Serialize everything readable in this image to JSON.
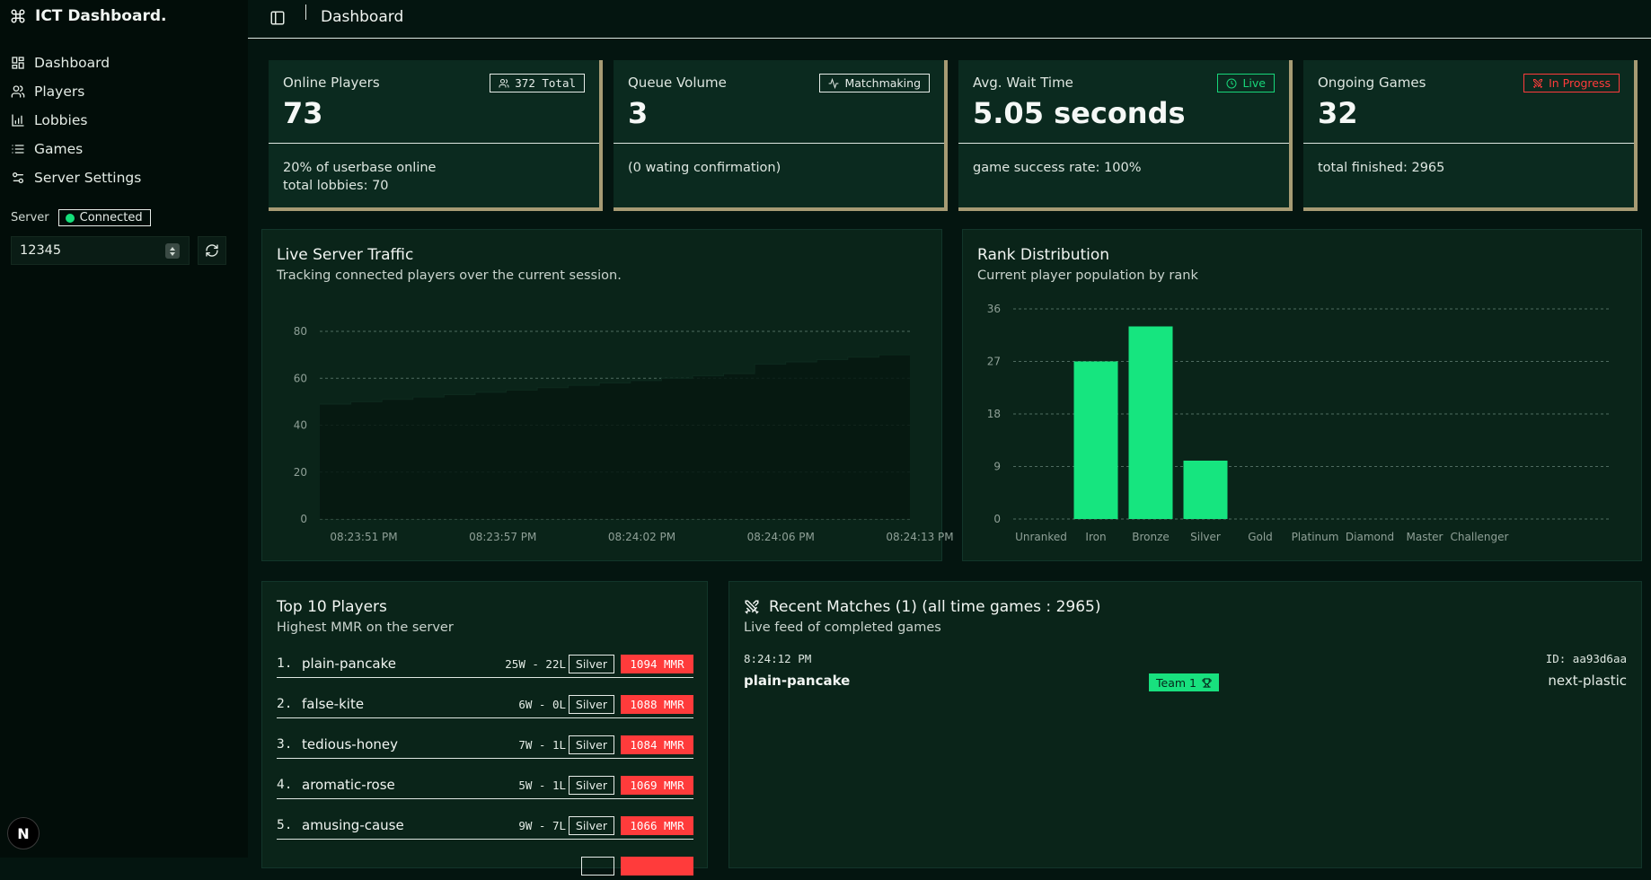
{
  "app": {
    "title": "ICT Dashboard."
  },
  "sidebar": {
    "items": [
      {
        "label": "Dashboard",
        "icon": "layout-grid-icon"
      },
      {
        "label": "Players",
        "icon": "users-icon"
      },
      {
        "label": "Lobbies",
        "icon": "bar-chart-icon"
      },
      {
        "label": "Games",
        "icon": "list-icon"
      },
      {
        "label": "Server Settings",
        "icon": "settings-sliders-icon"
      }
    ],
    "server_label": "Server",
    "server_status": "Connected",
    "port_value": "12345",
    "bottom_badge": "N"
  },
  "header": {
    "title": "Dashboard"
  },
  "stats": [
    {
      "label": "Online Players",
      "value": "73",
      "badge": "372 Total",
      "badge_icon": "users-icon",
      "line1": "20% of userbase online",
      "line2": "total lobbies: 70"
    },
    {
      "label": "Queue Volume",
      "value": "3",
      "badge": "Matchmaking",
      "badge_icon": "activity-icon",
      "line1": "(0 wating confirmation)",
      "line2": ""
    },
    {
      "label": "Avg. Wait Time",
      "value": "5.05 seconds",
      "badge": "Live",
      "badge_icon": "clock-icon",
      "line1": "game success rate: 100%",
      "line2": ""
    },
    {
      "label": "Ongoing Games",
      "value": "32",
      "badge": "In Progress",
      "badge_icon": "swords-icon",
      "line1": "total finished: 2965",
      "line2": ""
    }
  ],
  "colors": {
    "accent": "#15e07a",
    "danger": "#ff3b3b",
    "card_border": "#a79b74"
  },
  "traffic": {
    "title": "Live Server Traffic",
    "subtitle": "Tracking connected players over the current session."
  },
  "ranks": {
    "title": "Rank Distribution",
    "subtitle": "Current player population by rank"
  },
  "chart_data": [
    {
      "type": "area",
      "title": "Live Server Traffic",
      "x_ticks": [
        "08:23:51 PM",
        "08:23:57 PM",
        "08:24:02 PM",
        "08:24:06 PM",
        "08:24:13 PM"
      ],
      "y_ticks": [
        0,
        20,
        40,
        60,
        80
      ],
      "ylim": [
        0,
        80
      ],
      "values": [
        49,
        50,
        51,
        52,
        53,
        54,
        55,
        56,
        57,
        58,
        59,
        60,
        61,
        62,
        66,
        67,
        68,
        69,
        70
      ],
      "grid": true
    },
    {
      "type": "bar",
      "title": "Rank Distribution",
      "categories": [
        "Unranked",
        "Iron",
        "Bronze",
        "Silver",
        "Gold",
        "Platinum",
        "Diamond",
        "Master",
        "Challenger"
      ],
      "values": [
        0,
        27,
        33,
        10,
        0,
        0,
        0,
        0,
        0
      ],
      "y_ticks": [
        0,
        9,
        18,
        27,
        36
      ],
      "ylim": [
        0,
        36
      ],
      "grid": true
    }
  ],
  "top_players": {
    "title": "Top 10 Players",
    "subtitle": "Highest MMR on the server",
    "rows": [
      {
        "rank": "1.",
        "name": "plain-pancake",
        "wl": "25W - 22L",
        "tier": "Silver",
        "mmr": "1094 MMR"
      },
      {
        "rank": "2.",
        "name": "false-kite",
        "wl": "6W - 0L",
        "tier": "Silver",
        "mmr": "1088 MMR"
      },
      {
        "rank": "3.",
        "name": "tedious-honey",
        "wl": "7W - 1L",
        "tier": "Silver",
        "mmr": "1084 MMR"
      },
      {
        "rank": "4.",
        "name": "aromatic-rose",
        "wl": "5W - 1L",
        "tier": "Silver",
        "mmr": "1069 MMR"
      },
      {
        "rank": "5.",
        "name": "amusing-cause",
        "wl": "9W - 7L",
        "tier": "Silver",
        "mmr": "1066 MMR"
      }
    ]
  },
  "recent_matches": {
    "title": "Recent Matches (1) (all time games : 2965)",
    "subtitle": "Live feed of completed games",
    "matches": [
      {
        "time": "8:24:12 PM",
        "id": "ID: aa93d6aa",
        "player1": "plain-pancake",
        "winner": "Team 1",
        "player2": "next-plastic"
      }
    ]
  }
}
